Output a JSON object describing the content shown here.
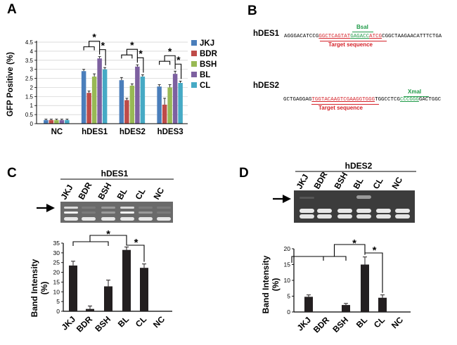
{
  "panels": {
    "A": "A",
    "B": "B",
    "C": "C",
    "D": "D"
  },
  "star": "*",
  "chart_data": [
    {
      "id": "A",
      "type": "bar",
      "ylabel": "GFP Positive (%)",
      "ylim": [
        0,
        4.5
      ],
      "yticks": [
        "0",
        "0.5",
        "1",
        "1.5",
        "2",
        "2.5",
        "3",
        "3.5",
        "4",
        "4.5"
      ],
      "categories": [
        "NC",
        "hDES1",
        "hDES2",
        "hDES3"
      ],
      "series": [
        {
          "name": "JKJ",
          "color": "#4a7ebb",
          "values": [
            0.2,
            2.9,
            2.4,
            2.05
          ],
          "errors": [
            0.05,
            0.1,
            0.15,
            0.1
          ]
        },
        {
          "name": "BDR",
          "color": "#be4b48",
          "values": [
            0.2,
            1.7,
            1.3,
            1.05
          ],
          "errors": [
            0.05,
            0.1,
            0.1,
            0.35
          ]
        },
        {
          "name": "BSH",
          "color": "#98b954",
          "values": [
            0.2,
            2.6,
            2.1,
            2.0
          ],
          "errors": [
            0.05,
            0.15,
            0.1,
            0.15
          ]
        },
        {
          "name": "BL",
          "color": "#7d60a0",
          "values": [
            0.2,
            3.6,
            3.15,
            2.75
          ],
          "errors": [
            0.05,
            0.1,
            0.1,
            0.15
          ]
        },
        {
          "name": "CL",
          "color": "#46aac5",
          "values": [
            0.2,
            3.0,
            2.6,
            2.25
          ],
          "errors": [
            0.05,
            0.1,
            0.1,
            0.1
          ]
        }
      ]
    },
    {
      "id": "C",
      "type": "bar",
      "ylabel": "Band Intensity (%)",
      "ylabel_lines": [
        "Band Intensity",
        "(%)"
      ],
      "ylim": [
        0,
        35
      ],
      "yticks": [
        "0",
        "5",
        "10",
        "15",
        "20",
        "25",
        "30",
        "35"
      ],
      "categories": [
        "JKJ",
        "BDR",
        "BSH",
        "BL",
        "CL",
        "NC"
      ],
      "values": [
        23.5,
        1.2,
        12.8,
        31.5,
        22.3,
        0
      ],
      "errors": [
        2.2,
        1.5,
        3.2,
        1.5,
        2.0,
        0
      ]
    },
    {
      "id": "D",
      "type": "bar",
      "ylabel": "Band Intensity (%)",
      "ylabel_lines": [
        "Band Intensity",
        "(%)"
      ],
      "ylim": [
        0,
        20
      ],
      "yticks": [
        "0",
        "5",
        "10",
        "15",
        "20"
      ],
      "categories": [
        "JKJ",
        "BDR",
        "BSH",
        "BL",
        "CL",
        "NC"
      ],
      "values": [
        4.8,
        0,
        2.2,
        15.0,
        4.5,
        0
      ],
      "errors": [
        0.6,
        0,
        0.5,
        2.4,
        0.9,
        0
      ]
    }
  ],
  "panel_b": {
    "hdes1": {
      "title": "hDES1",
      "seq_a": "AGGGACATCCG",
      "seq_red1": "GGCTCAGTAT",
      "seq_grn": "GAGACC",
      "seq_red2": "ATCG",
      "seq_b": "CGGCTAAGAACATTTCTGA",
      "site": "BsaI",
      "target": "Target sequence"
    },
    "hdes2": {
      "title": "hDES2",
      "seq_a": "GCTGAGGAG",
      "seq_red": "TGGTACAAGTCGAAGGTGGG",
      "seq_b": "TGGCCTCG",
      "seq_grn": "CCCGGG",
      "seq_c": "GACTGGC",
      "site": "XmaI",
      "target": "Target sequence"
    }
  },
  "gel_c": {
    "title": "hDES1",
    "lanes": [
      "JKJ",
      "BDR",
      "BSH",
      "BL",
      "CL",
      "NC"
    ]
  },
  "gel_d": {
    "title": "hDES2",
    "lanes": [
      "JKJ",
      "BDR",
      "BSH",
      "BL",
      "CL",
      "NC"
    ]
  }
}
